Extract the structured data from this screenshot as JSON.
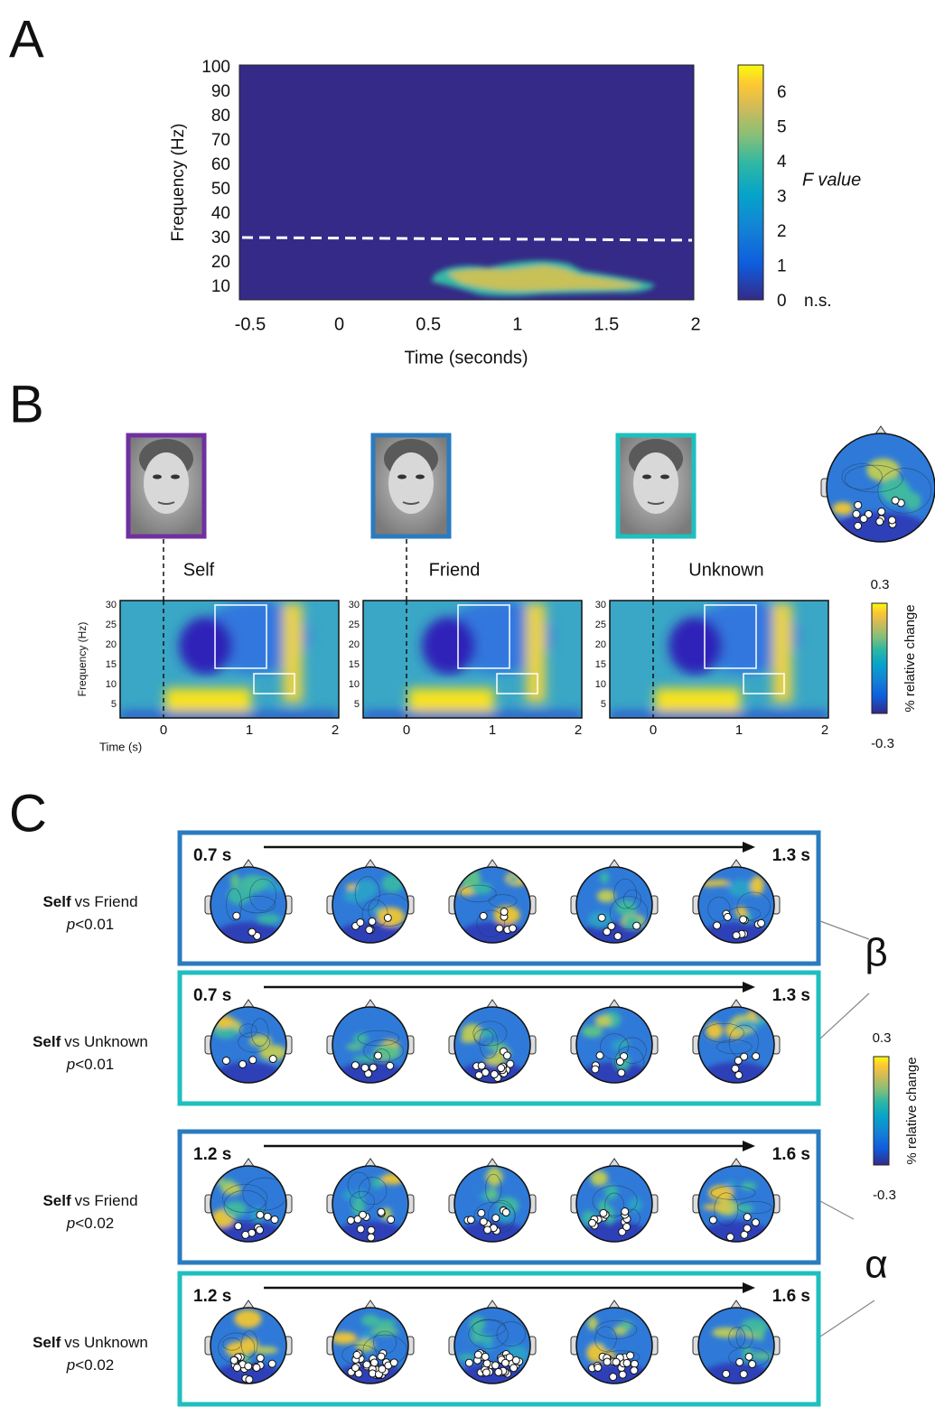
{
  "panel_a": {
    "label": "A",
    "y_axis_label": "Frequency (Hz)",
    "y_ticks": [
      100,
      90,
      80,
      70,
      60,
      50,
      40,
      30,
      20,
      10
    ],
    "x_ticks": [
      -0.5,
      0,
      0.5,
      1,
      1.5,
      2
    ],
    "x_axis_label": "Time (seconds)",
    "colorbar_ticks": [
      6,
      5,
      4,
      3,
      2,
      1,
      0
    ],
    "colorbar_ns": "n.s.",
    "colorbar_label": "F value"
  },
  "panel_b": {
    "label": "B",
    "conditions": [
      "Self",
      "Friend",
      "Unknown"
    ],
    "y_axis_label": "Frequency (Hz)",
    "y_ticks": [
      30,
      25,
      20,
      15,
      10,
      5
    ],
    "x_axis_label": "Time (s)",
    "x_ticks": [
      0,
      1,
      2
    ],
    "colorbar_max": 0.3,
    "colorbar_min": -0.3,
    "colorbar_label": "% relative change"
  },
  "panel_c": {
    "label": "C",
    "rows": [
      {
        "contrast_first": "Self",
        "contrast_rest": "vs Friend",
        "p_symbol": "p",
        "p_threshold": "<0.01",
        "start": "0.7 s",
        "end": "1.3 s"
      },
      {
        "contrast_first": "Self",
        "contrast_rest": "vs Unknown",
        "p_symbol": "p",
        "p_threshold": "<0.01",
        "start": "0.7 s",
        "end": "1.3 s"
      },
      {
        "contrast_first": "Self",
        "contrast_rest": "vs Friend",
        "p_symbol": "p",
        "p_threshold": "<0.02",
        "start": "1.2 s",
        "end": "1.6 s"
      },
      {
        "contrast_first": "Self",
        "contrast_rest": "vs Unknown",
        "p_symbol": "p",
        "p_threshold": "<0.02",
        "start": "1.2 s",
        "end": "1.6 s"
      }
    ],
    "bands": [
      "β",
      "α"
    ],
    "colorbar_max": 0.3,
    "colorbar_min": -0.3,
    "colorbar_label": "% relative change"
  }
}
